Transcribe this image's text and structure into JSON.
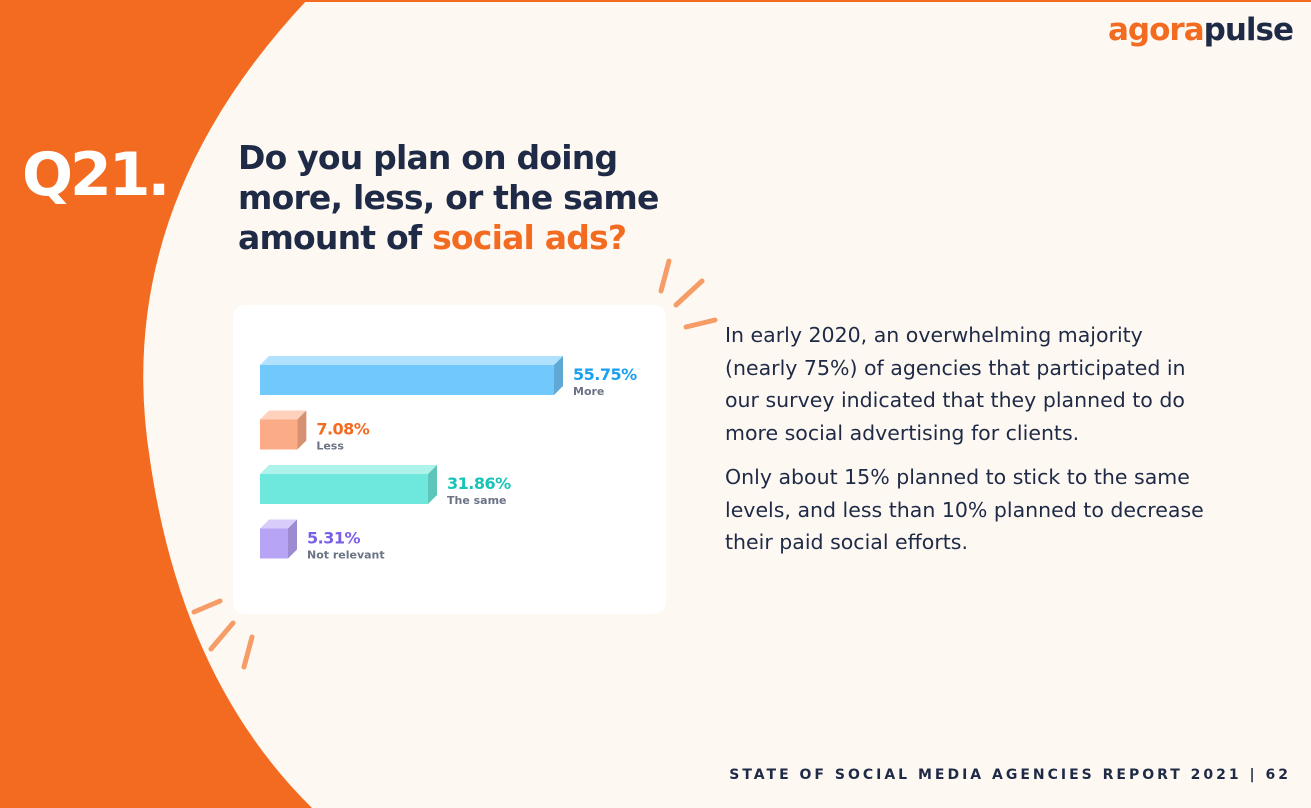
{
  "logo": {
    "part1": "agora",
    "part2": "pulse"
  },
  "question": {
    "number": "Q21.",
    "text_main": "Do you plan on doing more, less, or the same amount of ",
    "text_highlight": "social ads?"
  },
  "body": {
    "paragraphs": [
      "In early 2020, an overwhelming majority (nearly 75%) of agencies that participated in our survey indicated that they planned to do more social advertising for clients.",
      "Only about 15% planned to stick to the same levels, and less than 10% planned to decrease their paid social efforts."
    ]
  },
  "footer": {
    "text": "STATE OF SOCIAL MEDIA AGENCIES REPORT 2021 | 62"
  },
  "colors": {
    "orange": "#f26b21",
    "navy": "#1e2a46",
    "cream": "#fdf8f2",
    "more": "#70c8fb",
    "less": "#fbab85",
    "same": "#6ee8dc",
    "not_relevant": "#b8a4f5",
    "more_label": "#1aa0f0",
    "less_label": "#f26b21",
    "same_label": "#18c4b5",
    "not_relevant_label": "#7b5ee8"
  },
  "chart_data": {
    "type": "bar",
    "orientation": "horizontal",
    "categories": [
      "More",
      "Less",
      "The same",
      "Not relevant"
    ],
    "values": [
      55.75,
      7.08,
      31.86,
      5.31
    ],
    "value_labels": [
      "55.75%",
      "7.08%",
      "31.86%",
      "5.31%"
    ],
    "colors": [
      "#70c8fb",
      "#fbab85",
      "#6ee8dc",
      "#b8a4f5"
    ],
    "label_colors": [
      "#1aa0f0",
      "#f26b21",
      "#18c4b5",
      "#7b5ee8"
    ],
    "xlim": [
      0,
      55.75
    ],
    "title": "",
    "xlabel": "",
    "ylabel": "",
    "grid": false,
    "legend": "none"
  }
}
